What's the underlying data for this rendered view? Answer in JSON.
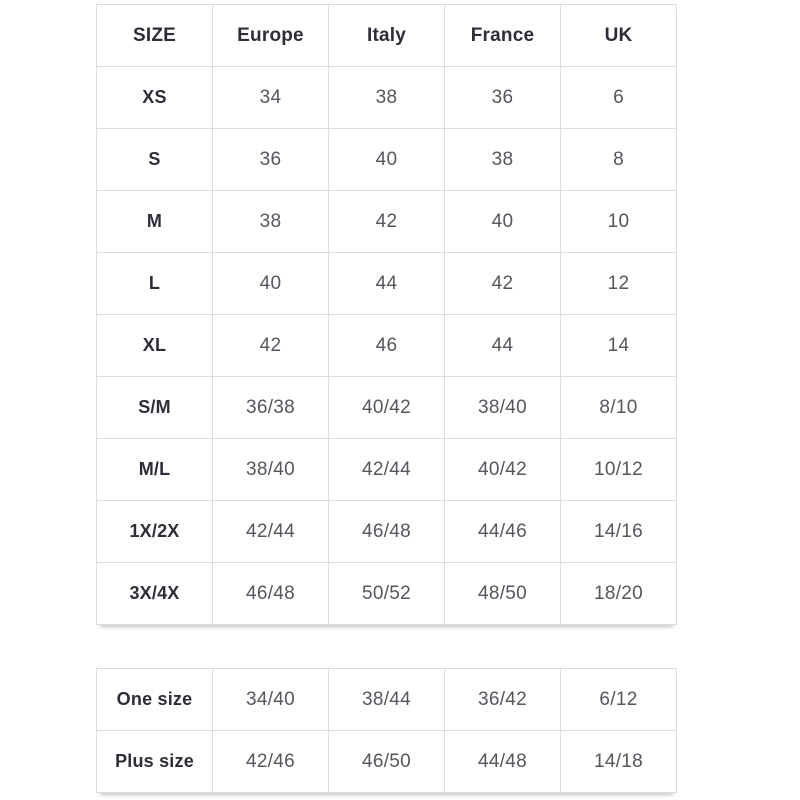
{
  "colors": {
    "background": "#ffffff",
    "border": "#dcdcdc",
    "header_text": "#2d2e37",
    "value_text": "#55565e"
  },
  "size_table": {
    "headers": {
      "size": "SIZE",
      "europe": "Europe",
      "italy": "Italy",
      "france": "France",
      "uk": "UK"
    },
    "rows": [
      {
        "size": "XS",
        "europe": "34",
        "italy": "38",
        "france": "36",
        "uk": "6"
      },
      {
        "size": "S",
        "europe": "36",
        "italy": "40",
        "france": "38",
        "uk": "8"
      },
      {
        "size": "M",
        "europe": "38",
        "italy": "42",
        "france": "40",
        "uk": "10"
      },
      {
        "size": "L",
        "europe": "40",
        "italy": "44",
        "france": "42",
        "uk": "12"
      },
      {
        "size": "XL",
        "europe": "42",
        "italy": "46",
        "france": "44",
        "uk": "14"
      },
      {
        "size": "S/M",
        "europe": "36/38",
        "italy": "40/42",
        "france": "38/40",
        "uk": "8/10"
      },
      {
        "size": "M/L",
        "europe": "38/40",
        "italy": "42/44",
        "france": "40/42",
        "uk": "10/12"
      },
      {
        "size": "1X/2X",
        "europe": "42/44",
        "italy": "46/48",
        "france": "44/46",
        "uk": "14/16"
      },
      {
        "size": "3X/4X",
        "europe": "46/48",
        "italy": "50/52",
        "france": "48/50",
        "uk": "18/20"
      }
    ]
  },
  "special_table": {
    "rows": [
      {
        "size": "One size",
        "europe": "34/40",
        "italy": "38/44",
        "france": "36/42",
        "uk": "6/12"
      },
      {
        "size": "Plus size",
        "europe": "42/46",
        "italy": "46/50",
        "france": "44/48",
        "uk": "14/18"
      }
    ]
  }
}
